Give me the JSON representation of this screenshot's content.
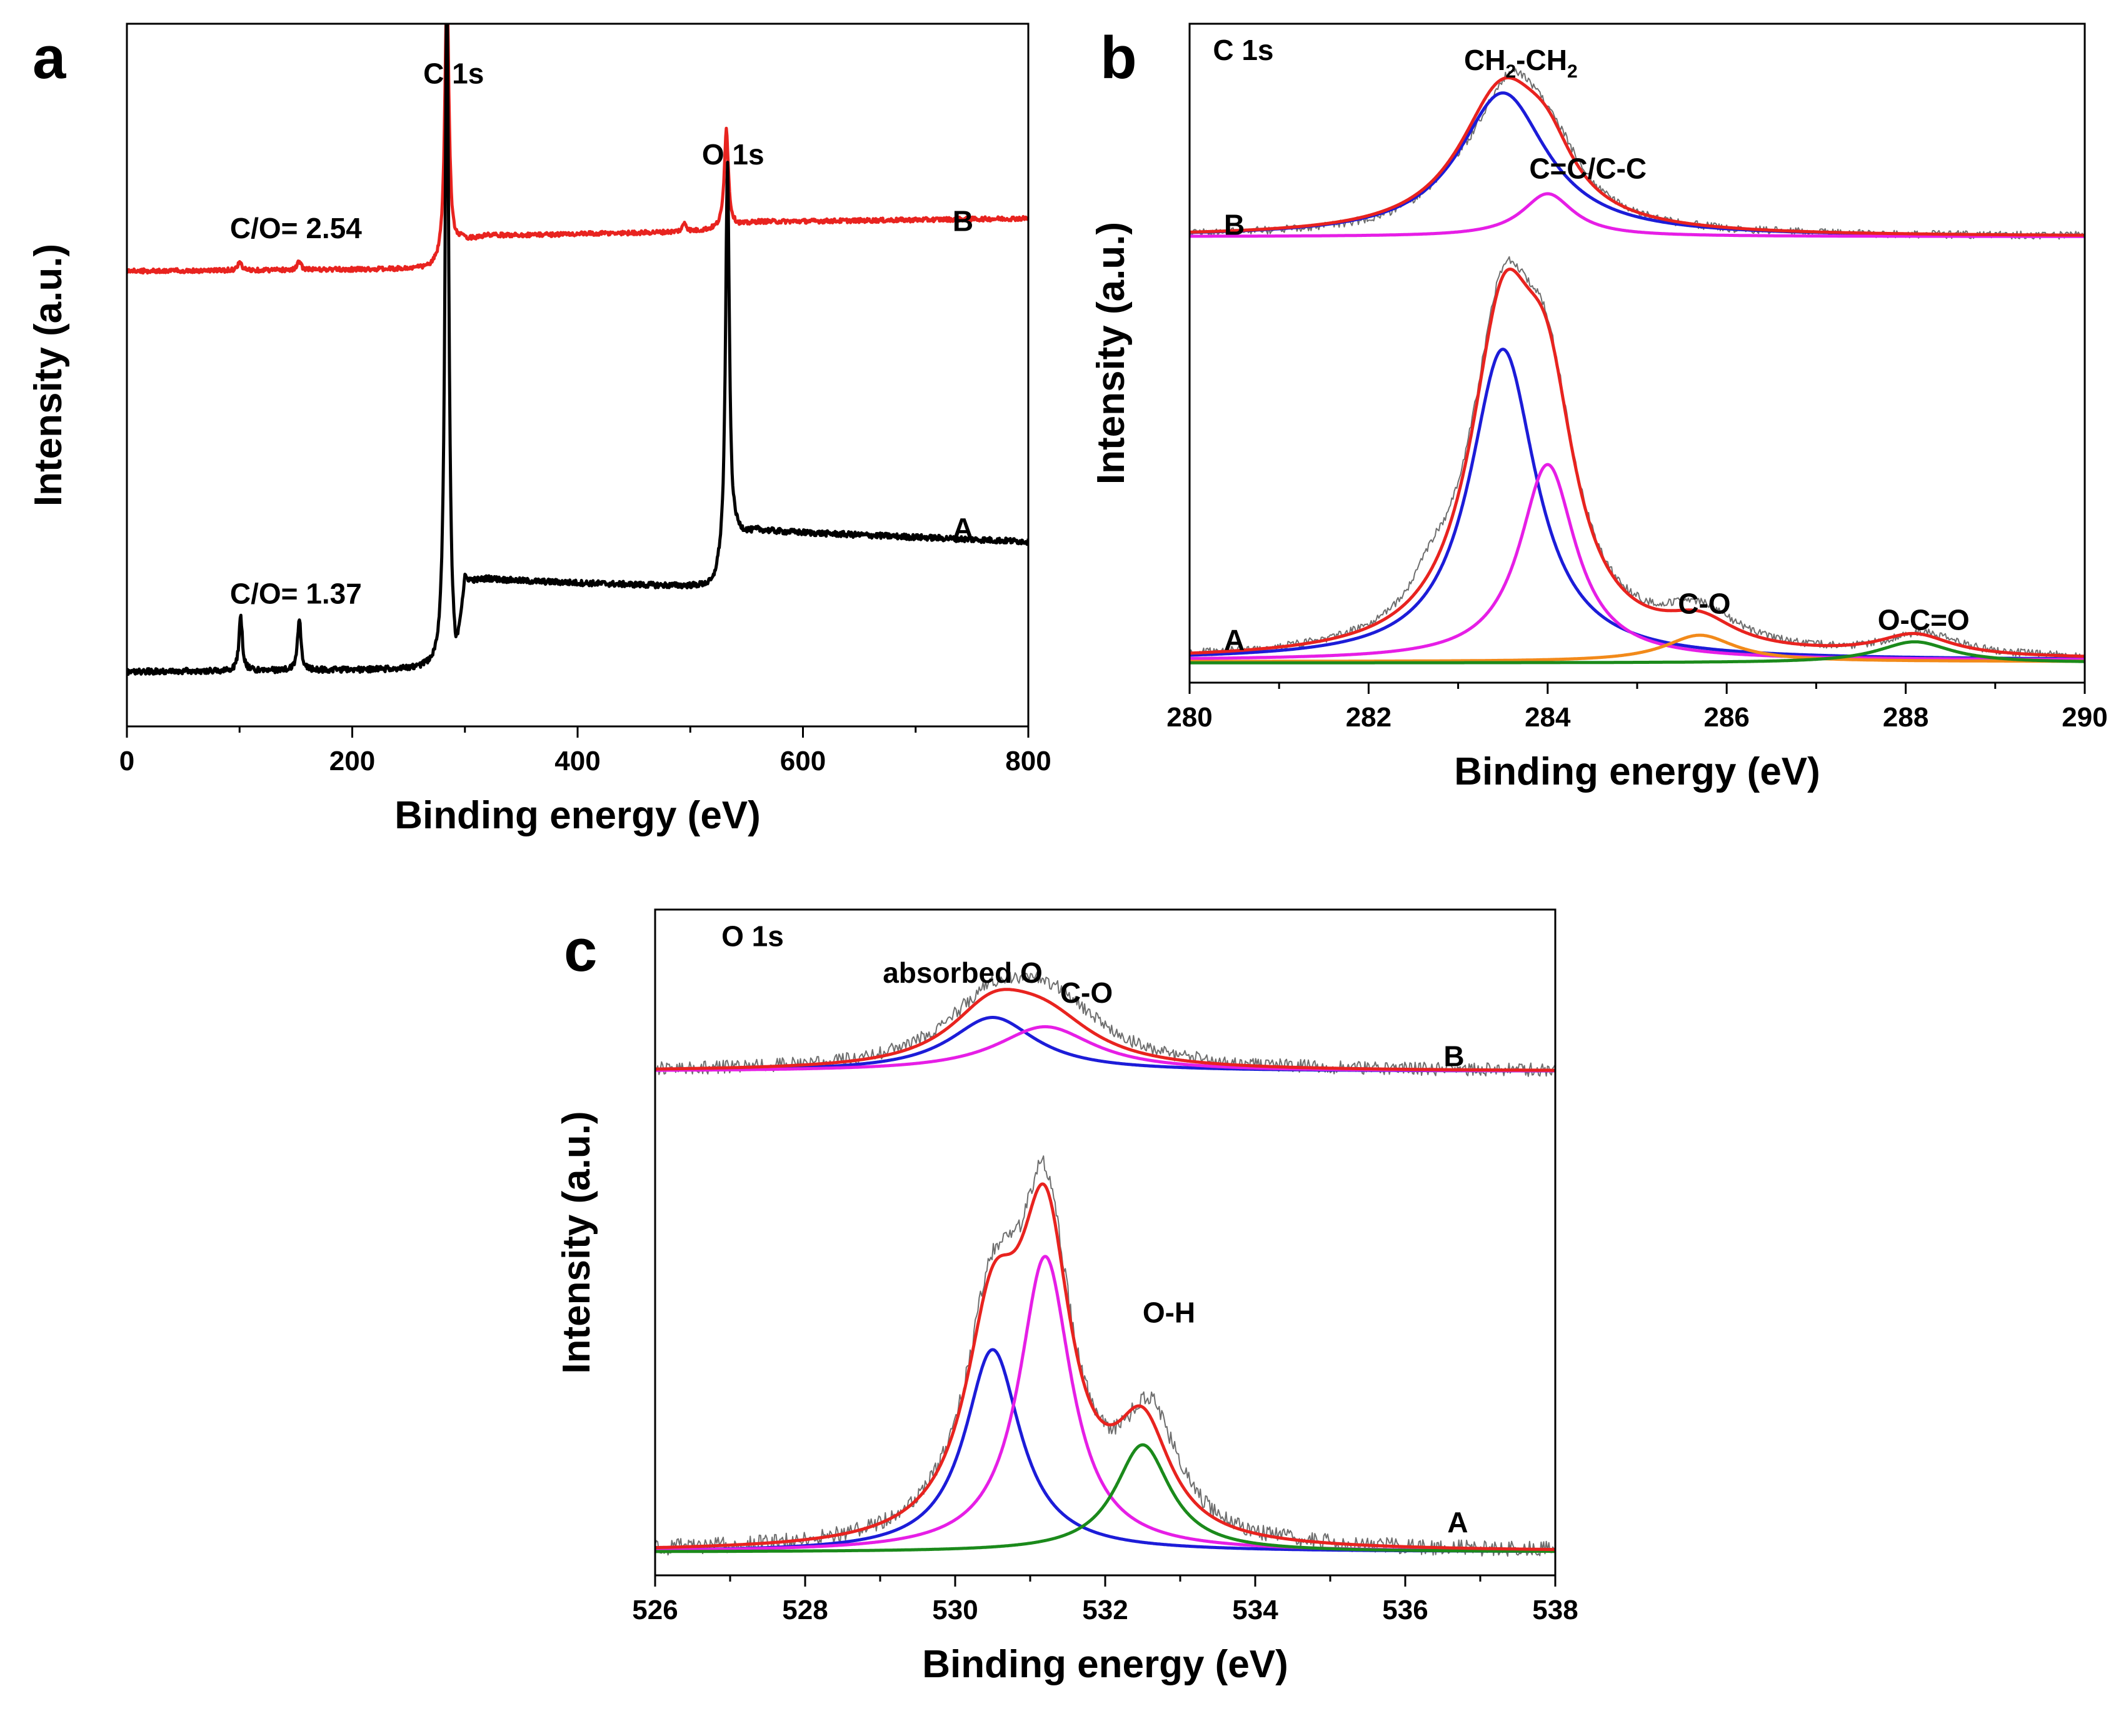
{
  "chart_data": [
    {
      "panel_label": "a",
      "type": "line",
      "title": "",
      "xlabel": "Binding energy (eV)",
      "ylabel": "Intensity (a.u.)",
      "xlim": [
        0,
        800
      ],
      "ylim": [
        0,
        1
      ],
      "x_ticks": [
        0,
        200,
        400,
        600,
        800
      ],
      "x_tick_labels": [
        "0",
        "200",
        "400",
        "600",
        "800"
      ],
      "grid": false,
      "series": [
        {
          "name": "B",
          "color": "#e8231f",
          "thin": false,
          "baseline": 0.648,
          "noise": 0.003,
          "background": [
            [
              0,
              0
            ],
            [
              270,
              0.003
            ],
            [
              283,
              0.01
            ],
            [
              296,
              0.04
            ],
            [
              320,
              0.05
            ],
            [
              500,
              0.056
            ],
            [
              530,
              0.06
            ],
            [
              560,
              0.07
            ],
            [
              800,
              0.075
            ]
          ],
          "peaks": [
            [
              100,
              0.012,
              2
            ],
            [
              153,
              0.012,
              2
            ],
            [
              284,
              0.395,
              2.2
            ],
            [
              495,
              0.013,
              2
            ],
            [
              532,
              0.142,
              2.2
            ]
          ]
        },
        {
          "name": "A",
          "color": "#000000",
          "thin": false,
          "baseline": 0.078,
          "noise": 0.004,
          "background": [
            [
              0,
              0
            ],
            [
              275,
              0.003
            ],
            [
              283,
              0.01
            ],
            [
              292,
              -0.01
            ],
            [
              300,
              0.12
            ],
            [
              320,
              0.13
            ],
            [
              520,
              0.12
            ],
            [
              540,
              0.19
            ],
            [
              560,
              0.2
            ],
            [
              800,
              0.185
            ]
          ],
          "peaks": [
            [
              101,
              0.078,
              1.8
            ],
            [
              153,
              0.074,
              1.8
            ],
            [
              284,
              0.98,
              2.0
            ],
            [
              533,
              0.56,
              2.0
            ]
          ]
        }
      ],
      "annotations": [
        {
          "text": "C 1s",
          "x": 290,
          "y": 0.915
        },
        {
          "text": "O 1s",
          "x": 538,
          "y": 0.8
        },
        {
          "text": "C/O= 2.54",
          "x": 150,
          "y": 0.695
        },
        {
          "text": "B",
          "x": 742,
          "y": 0.705
        },
        {
          "text": "C/O= 1.37",
          "x": 150,
          "y": 0.175
        },
        {
          "text": "A",
          "x": 742,
          "y": 0.268
        }
      ]
    },
    {
      "panel_label": "b",
      "type": "line",
      "title": "",
      "xlabel": "Binding energy (eV)",
      "ylabel": "Intensity (a.u.)",
      "xlim": [
        280,
        290
      ],
      "ylim": [
        0,
        1
      ],
      "x_ticks": [
        280,
        282,
        284,
        286,
        288,
        290
      ],
      "x_tick_labels": [
        "280",
        "282",
        "284",
        "286",
        "288",
        "290"
      ],
      "grid": false,
      "series": [
        {
          "name": "B data",
          "color": "#6e6e6e",
          "thin": true,
          "baseline": 0.677,
          "noise": 0.006,
          "peaks": [
            [
              283.6,
              0.23,
              0.55
            ],
            [
              284.1,
              0.05,
              0.35
            ],
            [
              282.9,
              0.02,
              0.3
            ]
          ]
        },
        {
          "name": "B CH2-CH2",
          "color": "#1c1cd8",
          "thin": false,
          "baseline": 0.677,
          "peaks": [
            [
              283.5,
              0.218,
              0.6
            ]
          ]
        },
        {
          "name": "B C=C/C-C",
          "color": "#e61ee6",
          "thin": false,
          "baseline": 0.677,
          "peaks": [
            [
              284.0,
              0.065,
              0.35
            ]
          ]
        },
        {
          "name": "B fit",
          "color": "#e8231f",
          "thin": false,
          "baseline": 0.677,
          "peaks": [
            [
              283.5,
              0.218,
              0.6
            ],
            [
              284.0,
              0.065,
              0.35
            ]
          ]
        },
        {
          "name": "A data",
          "color": "#6e6e6e",
          "thin": true,
          "baseline": 0.034,
          "noise": 0.006,
          "peaks": [
            [
              283.5,
              0.48,
              0.45
            ],
            [
              284.0,
              0.3,
              0.38
            ],
            [
              285.7,
              0.055,
              0.5
            ],
            [
              288.2,
              0.033,
              0.5
            ],
            [
              282.7,
              0.04,
              0.25
            ]
          ]
        },
        {
          "name": "A CH2-CH2",
          "color": "#1c1cd8",
          "thin": false,
          "baseline": 0.034,
          "peaks": [
            [
              283.5,
              0.472,
              0.45
            ]
          ]
        },
        {
          "name": "A C=C/C-C",
          "color": "#e61ee6",
          "thin": false,
          "baseline": 0.034,
          "peaks": [
            [
              284.0,
              0.297,
              0.38
            ]
          ]
        },
        {
          "name": "A C-O",
          "color": "#f28a1a",
          "thin": false,
          "baseline": 0.032,
          "peaks": [
            [
              285.7,
              0.04,
              0.48
            ]
          ]
        },
        {
          "name": "A O-C=O",
          "color": "#1b8a1b",
          "thin": false,
          "baseline": 0.03,
          "peaks": [
            [
              288.1,
              0.032,
              0.5
            ]
          ]
        },
        {
          "name": "A fit",
          "color": "#e8231f",
          "thin": false,
          "baseline": 0.034,
          "peaks": [
            [
              283.5,
              0.472,
              0.45
            ],
            [
              284.0,
              0.297,
              0.38
            ],
            [
              285.7,
              0.04,
              0.48
            ],
            [
              288.1,
              0.032,
              0.5
            ]
          ]
        }
      ],
      "annotations": [
        {
          "text": "C 1s",
          "x": 280.6,
          "y": 0.945
        },
        {
          "text": "CH",
          "x": 283.7,
          "y": 0.93,
          "sub": "2",
          "tail": "-CH",
          "sub2": "2"
        },
        {
          "text": "C=C/C-C",
          "x": 284.45,
          "y": 0.765
        },
        {
          "text": "B",
          "x": 280.5,
          "y": 0.68
        },
        {
          "text": "A",
          "x": 280.5,
          "y": 0.05
        },
        {
          "text": "C-O",
          "x": 285.75,
          "y": 0.105
        },
        {
          "text": "O-C=O",
          "x": 288.2,
          "y": 0.08
        }
      ]
    },
    {
      "panel_label": "c",
      "type": "line",
      "title": "",
      "xlabel": "Binding energy (eV)",
      "ylabel": "Intensity (a.u.)",
      "xlim": [
        526,
        538
      ],
      "ylim": [
        0,
        1
      ],
      "x_ticks": [
        526,
        528,
        530,
        532,
        534,
        536,
        538
      ],
      "x_tick_labels": [
        "526",
        "528",
        "530",
        "532",
        "534",
        "536",
        "538"
      ],
      "grid": false,
      "series": [
        {
          "name": "B data",
          "color": "#6e6e6e",
          "thin": true,
          "baseline": 0.757,
          "noise": 0.01,
          "peaks": [
            [
              530.5,
              0.09,
              0.75
            ],
            [
              531.3,
              0.09,
              0.8
            ]
          ]
        },
        {
          "name": "B absorbed O",
          "color": "#1c1cd8",
          "thin": false,
          "baseline": 0.757,
          "peaks": [
            [
              530.5,
              0.081,
              0.7
            ]
          ]
        },
        {
          "name": "B C-O",
          "color": "#e61ee6",
          "thin": false,
          "baseline": 0.757,
          "peaks": [
            [
              531.2,
              0.067,
              0.8
            ]
          ]
        },
        {
          "name": "B fit",
          "color": "#e8231f",
          "thin": false,
          "baseline": 0.757,
          "peaks": [
            [
              530.5,
              0.081,
              0.7
            ],
            [
              531.2,
              0.067,
              0.8
            ]
          ]
        },
        {
          "name": "A data",
          "color": "#6e6e6e",
          "thin": true,
          "baseline": 0.035,
          "noise": 0.012,
          "peaks": [
            [
              530.5,
              0.32,
              0.45
            ],
            [
              531.2,
              0.47,
              0.42
            ],
            [
              532.6,
              0.18,
              0.45
            ]
          ]
        },
        {
          "name": "A absorbed O",
          "color": "#1c1cd8",
          "thin": false,
          "baseline": 0.035,
          "peaks": [
            [
              530.5,
              0.304,
              0.45
            ]
          ]
        },
        {
          "name": "A C-O",
          "color": "#e61ee6",
          "thin": false,
          "baseline": 0.035,
          "peaks": [
            [
              531.2,
              0.444,
              0.42
            ]
          ]
        },
        {
          "name": "A O-H",
          "color": "#1b8a1b",
          "thin": false,
          "baseline": 0.035,
          "peaks": [
            [
              532.5,
              0.161,
              0.45
            ]
          ]
        },
        {
          "name": "A fit",
          "color": "#e8231f",
          "thin": false,
          "baseline": 0.035,
          "peaks": [
            [
              530.5,
              0.304,
              0.45
            ],
            [
              531.2,
              0.444,
              0.42
            ],
            [
              532.5,
              0.161,
              0.45
            ]
          ]
        }
      ],
      "annotations": [
        {
          "text": "O 1s",
          "x": 527.3,
          "y": 0.945
        },
        {
          "text": "absorbed O",
          "x": 530.1,
          "y": 0.89
        },
        {
          "text": "C-O",
          "x": 531.75,
          "y": 0.86
        },
        {
          "text": "B",
          "x": 536.65,
          "y": 0.765
        },
        {
          "text": "O-H",
          "x": 532.85,
          "y": 0.38
        },
        {
          "text": "A",
          "x": 536.7,
          "y": 0.065
        }
      ]
    }
  ]
}
